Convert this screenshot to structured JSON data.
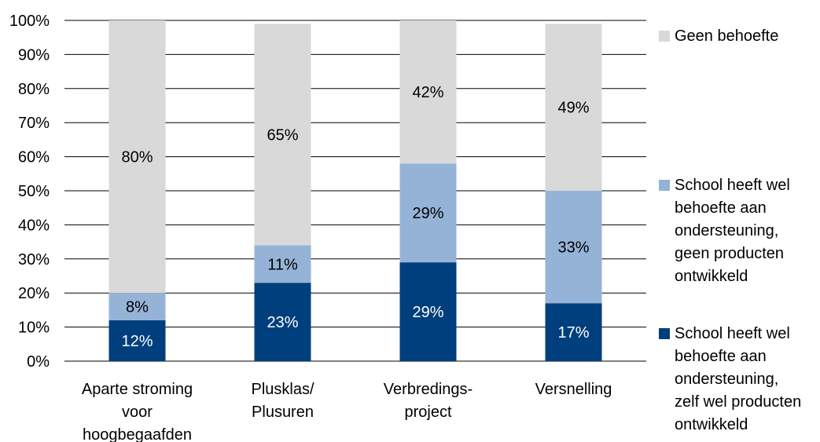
{
  "chart_data": {
    "type": "bar",
    "stacked": true,
    "categories": [
      [
        "Aparte stroming",
        "voor",
        "hoogbegaafden"
      ],
      [
        "Plusklas/",
        "Plusuren"
      ],
      [
        "Verbredings-",
        "project"
      ],
      [
        "Versnelling"
      ]
    ],
    "series": [
      {
        "name": [
          "School heeft wel",
          "behoefte aan",
          "ondersteuning,",
          "zelf wel producten",
          "ontwikkeld"
        ],
        "values": [
          12,
          23,
          29,
          17
        ],
        "labels": [
          "12%",
          "23%",
          "29%",
          "17%"
        ],
        "color": "#003f7d",
        "label_color": "#ffffff"
      },
      {
        "name": [
          "School heeft wel",
          "behoefte aan",
          "ondersteuning,",
          "geen producten",
          "ontwikkeld"
        ],
        "values": [
          8,
          11,
          29,
          33
        ],
        "labels": [
          "8%",
          "11%",
          "29%",
          "33%"
        ],
        "color": "#95b3d7",
        "label_color": "#000000"
      },
      {
        "name": [
          "Geen behoefte"
        ],
        "values": [
          80,
          65,
          42,
          49
        ],
        "labels": [
          "80%",
          "65%",
          "42%",
          "49%"
        ],
        "color": "#d9d9d9",
        "label_color": "#000000"
      }
    ],
    "y_ticks": [
      "0%",
      "10%",
      "20%",
      "30%",
      "40%",
      "50%",
      "60%",
      "70%",
      "80%",
      "90%",
      "100%"
    ],
    "ylim": [
      0,
      100
    ],
    "grid": true,
    "legend_position": "right",
    "legend_order": [
      2,
      1,
      0
    ]
  }
}
